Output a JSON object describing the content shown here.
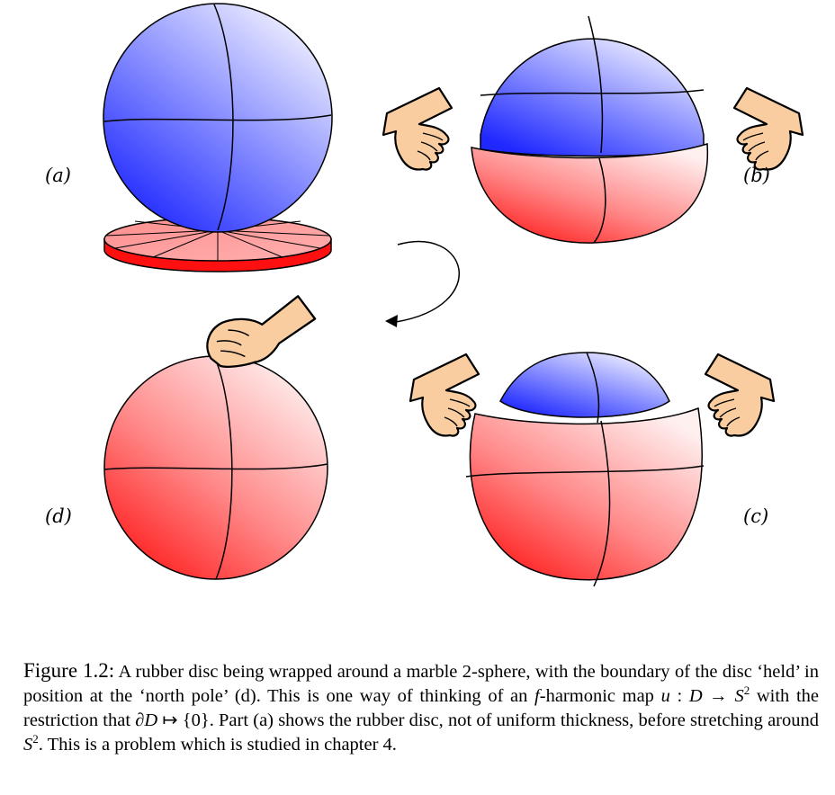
{
  "panel_labels": {
    "a": "(a)",
    "b": "(b)",
    "c": "(c)",
    "d": "(d)"
  },
  "caption": {
    "figure_label": "Figure 1.2:",
    "part1": " A rubber disc being wrapped around a marble 2-sphere, with the boundary of the disc ‘held’ in position at the ‘north pole’ (d). This is one way of thinking of an ",
    "f": "f",
    "part2": "-harmonic map ",
    "u": "u",
    "colon": " : ",
    "D": "D",
    "arrow": " → ",
    "S": "S",
    "sup1": "2",
    "part3": " with the restriction that ",
    "boundary": "∂D",
    "mapsto": " ↦ {0}",
    "part4": ". Part (a) shows the rubber disc, not of uniform thickness, before stretching around ",
    "S2": "S",
    "sup2": "2",
    "part5": ". This is a problem which is studied in chapter 4."
  },
  "colors": {
    "sphere_blue": "#2a33ff",
    "sphere_red": "#ff2a2a",
    "skin": "#f9cda0",
    "outline": "#000000"
  },
  "icons": [
    "hand-icon",
    "rotation-arrow-icon"
  ]
}
